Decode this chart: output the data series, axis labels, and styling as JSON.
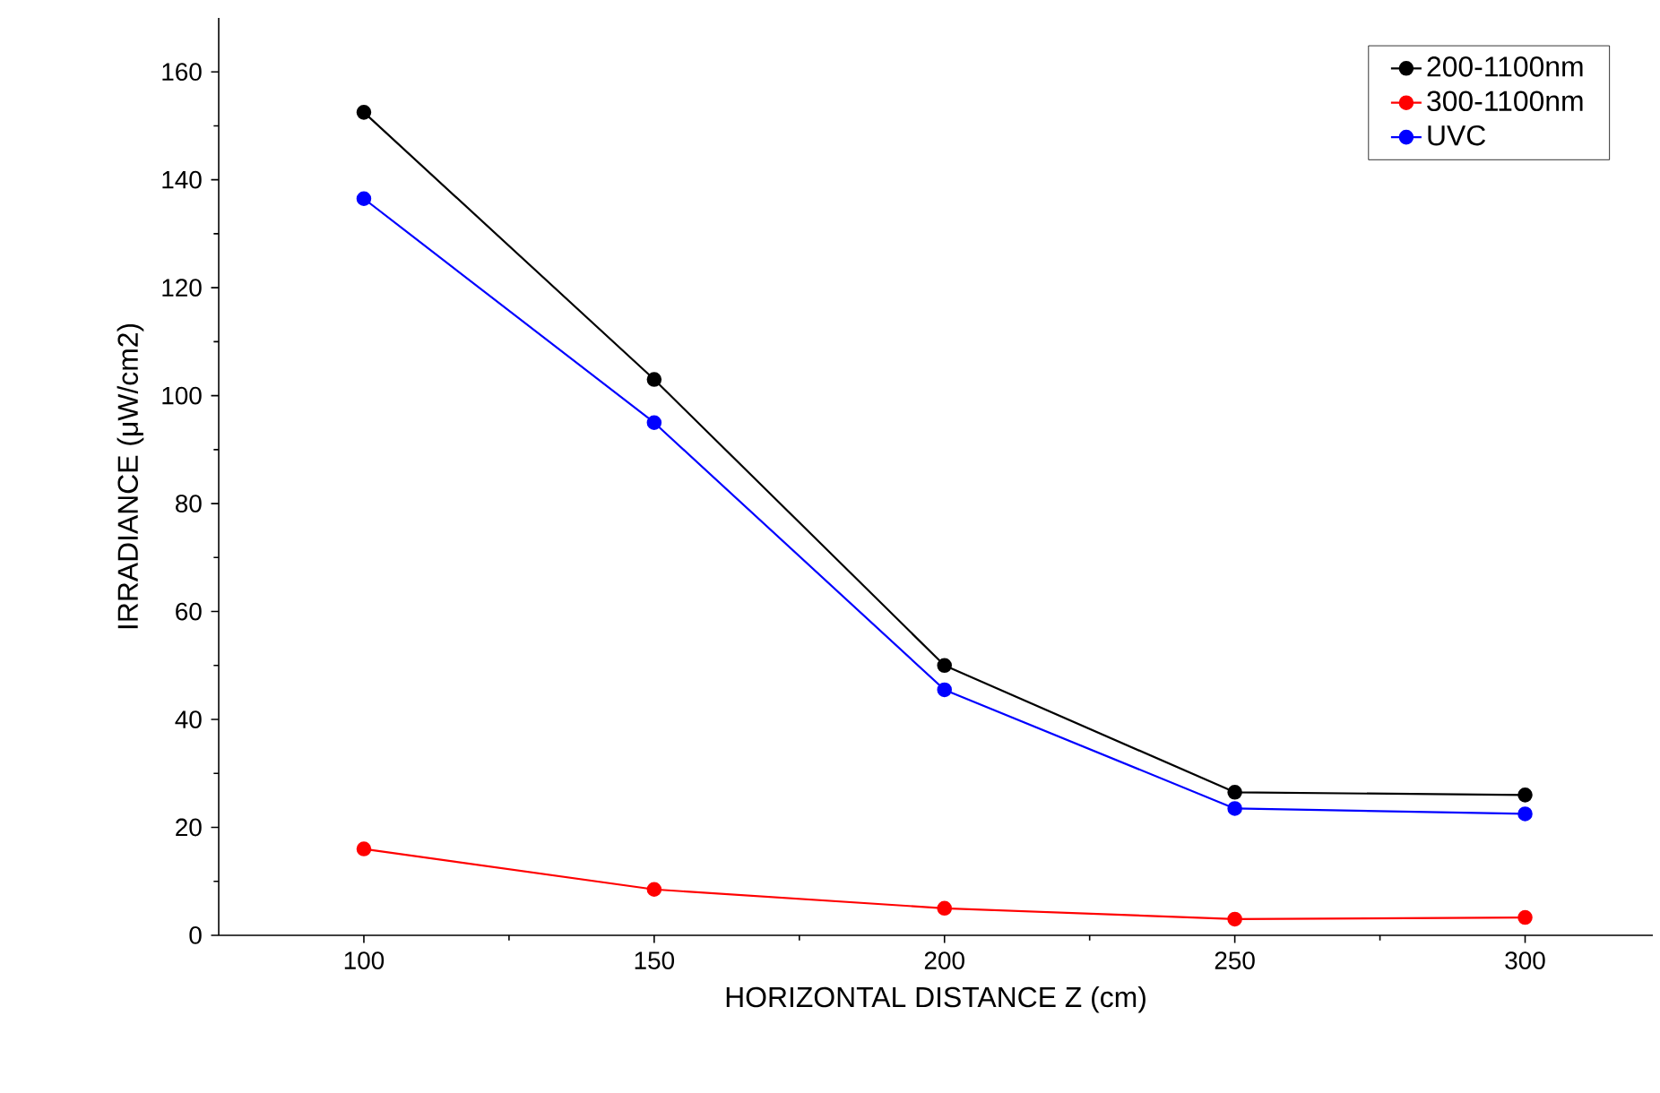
{
  "chart_data": {
    "type": "line",
    "xlabel": "HORIZONTAL DISTANCE Z (cm)",
    "ylabel": "IRRADIANCE (μW/cm2)",
    "x": [
      100,
      150,
      200,
      250,
      300
    ],
    "series": [
      {
        "name": "200-1100nm",
        "color": "#000000",
        "values": [
          152.5,
          103,
          50,
          26.5,
          26
        ]
      },
      {
        "name": "300-1100nm",
        "color": "#ff0000",
        "values": [
          16,
          8.5,
          5,
          3,
          3.3
        ]
      },
      {
        "name": "UVC",
        "color": "#0000ff",
        "values": [
          136.5,
          95,
          45.5,
          23.5,
          22.5
        ]
      }
    ],
    "xlim": [
      75,
      322
    ],
    "ylim": [
      0,
      170
    ],
    "xticks": [
      100,
      150,
      200,
      250,
      300
    ],
    "yticks": [
      0,
      20,
      40,
      60,
      80,
      100,
      120,
      140,
      160
    ],
    "grid": false,
    "legend": "top right",
    "marker": "circle",
    "line_style": "solid"
  }
}
